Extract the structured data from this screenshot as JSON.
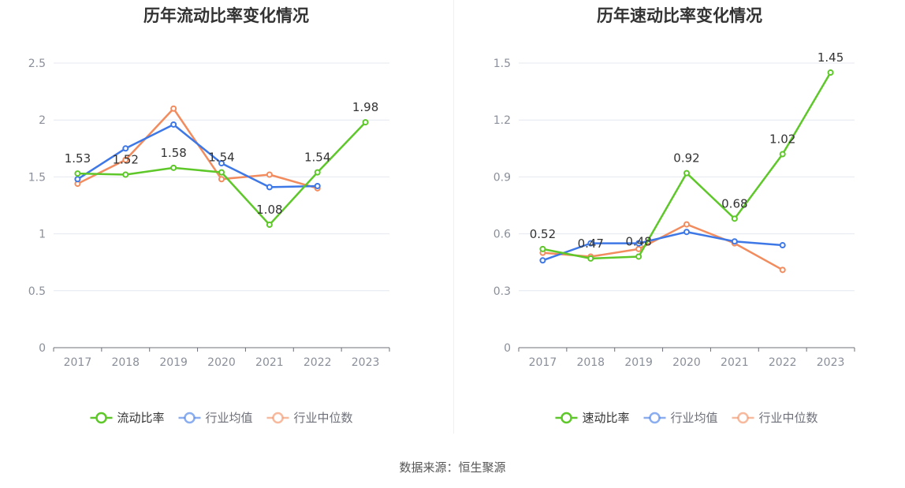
{
  "source": "数据来源：恒生聚源",
  "chart_data": [
    {
      "type": "line",
      "title": "历年流动比率变化情况",
      "categories": [
        "2017",
        "2018",
        "2019",
        "2020",
        "2021",
        "2022",
        "2023"
      ],
      "ylim": [
        0,
        2.5
      ],
      "yticks": [
        "0",
        "0.5",
        "1",
        "1.5",
        "2",
        "2.5"
      ],
      "grid": true,
      "legend_position": "bottom",
      "series": [
        {
          "name": "流动比率",
          "color": "#5ec729",
          "values": [
            1.53,
            1.52,
            1.58,
            1.54,
            1.08,
            1.54,
            1.98
          ],
          "labels": [
            "1.53",
            "1.52",
            "1.58",
            "1.54",
            "1.08",
            "1.54",
            "1.98"
          ]
        },
        {
          "name": "行业均值",
          "color": "#3e78e6",
          "values": [
            1.48,
            1.75,
            1.96,
            1.62,
            1.41,
            1.42,
            null
          ]
        },
        {
          "name": "行业中位数",
          "color": "#f28c5e",
          "values": [
            1.44,
            1.65,
            2.1,
            1.48,
            1.52,
            1.4,
            null
          ]
        }
      ]
    },
    {
      "type": "line",
      "title": "历年速动比率变化情况",
      "categories": [
        "2017",
        "2018",
        "2019",
        "2020",
        "2021",
        "2022",
        "2023"
      ],
      "ylim": [
        0,
        1.5
      ],
      "yticks": [
        "0",
        "0.3",
        "0.6",
        "0.9",
        "1.2",
        "1.5"
      ],
      "grid": true,
      "legend_position": "bottom",
      "series": [
        {
          "name": "速动比率",
          "color": "#5ec729",
          "values": [
            0.52,
            0.47,
            0.48,
            0.92,
            0.68,
            1.02,
            1.45
          ],
          "labels": [
            "0.52",
            "0.47",
            "0.48",
            "0.92",
            "0.68",
            "1.02",
            "1.45"
          ]
        },
        {
          "name": "行业均值",
          "color": "#3e78e6",
          "values": [
            0.46,
            0.55,
            0.55,
            0.61,
            0.56,
            0.54,
            null
          ]
        },
        {
          "name": "行业中位数",
          "color": "#f28c5e",
          "values": [
            0.5,
            0.48,
            0.52,
            0.65,
            0.55,
            0.41,
            null
          ]
        }
      ]
    }
  ]
}
